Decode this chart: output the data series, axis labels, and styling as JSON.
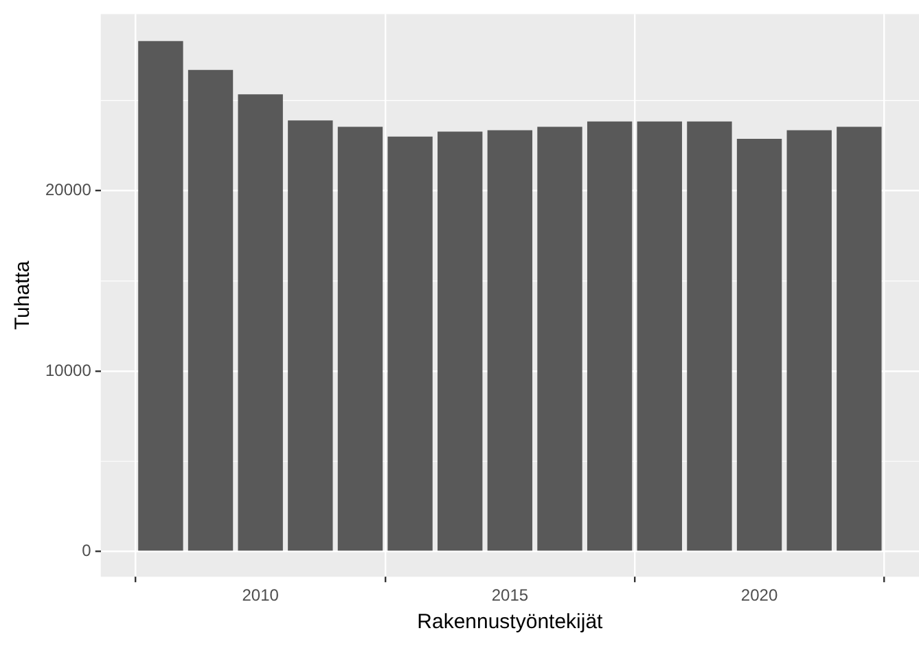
{
  "chart_data": {
    "type": "bar",
    "xlabel": "Rakennustyöntekijät",
    "ylabel": "Tuhatta",
    "x": [
      2008,
      2009,
      2010,
      2011,
      2012,
      2013,
      2014,
      2015,
      2016,
      2017,
      2018,
      2019,
      2020,
      2021,
      2022
    ],
    "values": [
      28300,
      26700,
      25350,
      23900,
      23550,
      23000,
      23280,
      23360,
      23550,
      23840,
      23840,
      23840,
      22880,
      23360,
      23550
    ],
    "color": "#595959",
    "xlim": [
      2006.8,
      2023.2
    ],
    "xticks": [
      2010,
      2015,
      2020
    ],
    "ylim": [
      -1400,
      29800
    ],
    "yticks": [
      0,
      10000,
      20000
    ],
    "grid": true
  }
}
